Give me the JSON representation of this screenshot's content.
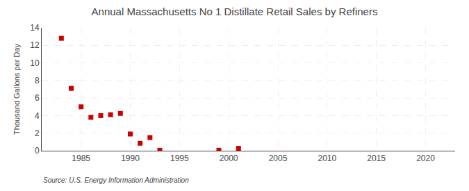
{
  "chart_data": {
    "type": "scatter",
    "title": "Annual Massachusetts No 1 Distillate Retail Sales by Refiners",
    "ylabel": "Thousand Gallons per Day",
    "annotations": [
      "Source: U.S. Energy Information Administration"
    ],
    "x": [
      1983,
      1984,
      1985,
      1986,
      1987,
      1988,
      1989,
      1990,
      1991,
      1992,
      1993,
      1999,
      2001
    ],
    "values": [
      12.8,
      7.1,
      5.0,
      3.8,
      4.0,
      4.1,
      4.25,
      1.9,
      0.85,
      1.5,
      0.05,
      0.05,
      0.27
    ],
    "xlim": [
      1981,
      2023
    ],
    "ylim": [
      0,
      14
    ],
    "xticks": [
      1985,
      1990,
      1995,
      2000,
      2005,
      2010,
      2015,
      2020
    ],
    "yticks": [
      0,
      2,
      4,
      6,
      8,
      10,
      12,
      14
    ],
    "color": "#cc0000",
    "marker": "square",
    "grid": true
  }
}
